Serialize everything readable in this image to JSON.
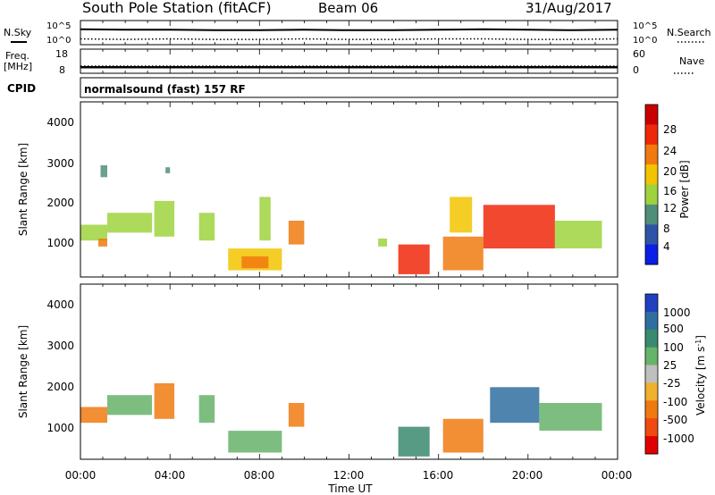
{
  "header": {
    "station": "South Pole Station (fitACF)",
    "beam": "Beam 06",
    "date": "31/Aug/2017"
  },
  "noise_panel": {
    "left_label": "N.Sky",
    "right_label": "N.Search",
    "left_ticks": [
      "10^5",
      "10^0"
    ],
    "right_ticks": [
      "10^5",
      "10^0"
    ]
  },
  "freq_panel": {
    "left_label_1": "Freq.",
    "left_label_2": "[MHz]",
    "right_label": "Nave",
    "left_ticks": [
      "18",
      "8"
    ],
    "right_ticks": [
      "60",
      "0"
    ]
  },
  "cpid_panel": {
    "label": "CPID",
    "text": "normalsound (fast) 157 RF"
  },
  "axes": {
    "ylabel": "Slant Range [km]",
    "xlabel": "Time UT",
    "x_ticks": [
      "00:00",
      "04:00",
      "08:00",
      "12:00",
      "16:00",
      "20:00",
      "00:00"
    ],
    "y_ticks": [
      "4000",
      "3000",
      "2000",
      "1000"
    ]
  },
  "colorbars": {
    "power": {
      "label": "Power [dB]",
      "ticks": [
        "28",
        "24",
        "20",
        "16",
        "12",
        "8",
        "4"
      ],
      "colors": [
        "#0a1ee6",
        "#2e54a8",
        "#4f8f7a",
        "#9fd33e",
        "#f2c400",
        "#f07a0f",
        "#f0280a",
        "#c80000"
      ]
    },
    "velocity": {
      "label": "Velocity [m s",
      "label_exp": "-1",
      "label_end": "]",
      "ticks": [
        "1000",
        "500",
        "100",
        "25",
        "-25",
        "-100",
        "-500",
        "-1000"
      ],
      "colors": [
        "#2040c0",
        "#2f6fa0",
        "#3a8a70",
        "#66b36a",
        "#bfbfbf",
        "#f0b030",
        "#f07a10",
        "#f04a10",
        "#e00000"
      ]
    }
  },
  "chart_data": {
    "type": "heatmap",
    "title": "South Pole Station (fitACF)",
    "xlabel": "Time UT",
    "ylabel": "Slant Range [km]",
    "xlim": [
      0,
      24
    ],
    "ylim": [
      180,
      4600
    ],
    "noise_sky_log10": {
      "x": [
        0,
        2,
        4,
        6,
        8,
        10,
        12,
        14,
        16,
        18,
        20,
        22,
        24
      ],
      "y": [
        3.2,
        3.1,
        3.1,
        3.0,
        3.0,
        3.1,
        3.0,
        3.0,
        3.1,
        3.2,
        3.1,
        3.0,
        3.1
      ]
    },
    "noise_search_log10": {
      "x": [
        0,
        2,
        4,
        6,
        8,
        10,
        12,
        14,
        16,
        18,
        20,
        22,
        24
      ],
      "y": [
        1.2,
        1.1,
        1.2,
        1.1,
        1.1,
        1.2,
        1.1,
        1.1,
        1.2,
        1.2,
        1.1,
        1.1,
        1.2
      ]
    },
    "freq_mhz": {
      "x": [
        0,
        24
      ],
      "y": [
        10.5,
        10.5
      ]
    },
    "power_db": [
      {
        "t0": 0.0,
        "t1": 1.2,
        "r0": 1100,
        "r1": 1500,
        "v": 14
      },
      {
        "t0": 0.8,
        "t1": 1.2,
        "r0": 950,
        "r1": 1150,
        "v": 22
      },
      {
        "t0": 0.9,
        "t1": 1.2,
        "r0": 2700,
        "r1": 3000,
        "v": 8
      },
      {
        "t0": 1.2,
        "t1": 3.2,
        "r0": 1300,
        "r1": 1800,
        "v": 12
      },
      {
        "t0": 3.3,
        "t1": 4.2,
        "r0": 1200,
        "r1": 2100,
        "v": 14
      },
      {
        "t0": 3.8,
        "t1": 4.0,
        "r0": 2800,
        "r1": 2950,
        "v": 8
      },
      {
        "t0": 5.3,
        "t1": 6.0,
        "r0": 1100,
        "r1": 1800,
        "v": 14
      },
      {
        "t0": 6.6,
        "t1": 9.0,
        "r0": 350,
        "r1": 900,
        "v": 18
      },
      {
        "t0": 7.2,
        "t1": 8.4,
        "r0": 400,
        "r1": 700,
        "v": 22
      },
      {
        "t0": 8.0,
        "t1": 8.5,
        "r0": 1100,
        "r1": 2200,
        "v": 12
      },
      {
        "t0": 9.3,
        "t1": 10.0,
        "r0": 1000,
        "r1": 1600,
        "v": 22
      },
      {
        "t0": 13.3,
        "t1": 13.7,
        "r0": 950,
        "r1": 1150,
        "v": 12
      },
      {
        "t0": 14.2,
        "t1": 15.6,
        "r0": 250,
        "r1": 1000,
        "v": 24
      },
      {
        "t0": 16.2,
        "t1": 18.0,
        "r0": 350,
        "r1": 1200,
        "v": 22
      },
      {
        "t0": 16.5,
        "t1": 17.5,
        "r0": 1300,
        "r1": 2200,
        "v": 18
      },
      {
        "t0": 18.0,
        "t1": 21.2,
        "r0": 900,
        "r1": 2000,
        "v": 24
      },
      {
        "t0": 21.2,
        "t1": 23.3,
        "r0": 900,
        "r1": 1600,
        "v": 12
      }
    ],
    "velocity_ms": [
      {
        "t0": 0.0,
        "t1": 1.2,
        "r0": 1100,
        "r1": 1500,
        "v": -200
      },
      {
        "t0": 1.2,
        "t1": 3.2,
        "r0": 1300,
        "r1": 1800,
        "v": 80
      },
      {
        "t0": 3.3,
        "t1": 4.2,
        "r0": 1200,
        "r1": 2100,
        "v": -300
      },
      {
        "t0": 5.3,
        "t1": 6.0,
        "r0": 1100,
        "r1": 1800,
        "v": 60
      },
      {
        "t0": 6.6,
        "t1": 9.0,
        "r0": 350,
        "r1": 900,
        "v": 60
      },
      {
        "t0": 9.3,
        "t1": 10.0,
        "r0": 1000,
        "r1": 1600,
        "v": -400
      },
      {
        "t0": 14.2,
        "t1": 15.6,
        "r0": 250,
        "r1": 1000,
        "v": 100
      },
      {
        "t0": 16.2,
        "t1": 18.0,
        "r0": 350,
        "r1": 1200,
        "v": -200
      },
      {
        "t0": 18.3,
        "t1": 20.5,
        "r0": 1100,
        "r1": 2000,
        "v": 800
      },
      {
        "t0": 20.5,
        "t1": 23.3,
        "r0": 900,
        "r1": 1600,
        "v": 60
      }
    ]
  }
}
